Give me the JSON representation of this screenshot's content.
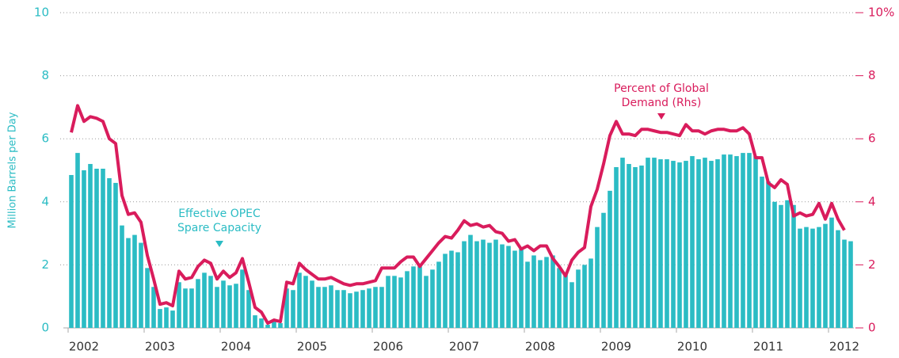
{
  "chart_data": {
    "type": "bar-line",
    "y_label": "Million Barrels per Day",
    "categories": [
      null,
      null,
      "2002",
      null,
      null,
      null,
      null,
      null,
      null,
      null,
      null,
      null,
      null,
      null,
      "2003",
      null,
      null,
      null,
      null,
      null,
      null,
      null,
      null,
      null,
      null,
      null,
      "2004",
      null,
      null,
      null,
      null,
      null,
      null,
      null,
      null,
      null,
      null,
      null,
      "2005",
      null,
      null,
      null,
      null,
      null,
      null,
      null,
      null,
      null,
      null,
      null,
      "2006",
      null,
      null,
      null,
      null,
      null,
      null,
      null,
      null,
      null,
      null,
      null,
      "2007",
      null,
      null,
      null,
      null,
      null,
      null,
      null,
      null,
      null,
      null,
      null,
      "2008",
      null,
      null,
      null,
      null,
      null,
      null,
      null,
      null,
      null,
      null,
      null,
      "2009",
      null,
      null,
      null,
      null,
      null,
      null,
      null,
      null,
      null,
      null,
      null,
      "2010",
      null,
      null,
      null,
      null,
      null,
      null,
      null,
      null,
      null,
      null,
      null,
      "2011",
      null,
      null,
      null,
      null,
      null,
      null,
      null,
      null,
      null,
      null,
      null,
      "2012",
      null
    ],
    "series": [
      {
        "name": "Effective OPEC Spare Capacity",
        "color": "#2bbcc4",
        "kind": "bar",
        "values": [
          4.85,
          5.55,
          5.0,
          5.2,
          5.05,
          5.05,
          4.75,
          4.6,
          3.25,
          2.85,
          2.95,
          2.7,
          1.9,
          1.3,
          0.6,
          0.65,
          0.55,
          1.45,
          1.25,
          1.25,
          1.55,
          1.75,
          1.65,
          1.3,
          1.5,
          1.35,
          1.4,
          1.85,
          1.2,
          0.4,
          0.3,
          0.1,
          0.2,
          0.15,
          1.25,
          1.2,
          1.75,
          1.65,
          1.5,
          1.3,
          1.3,
          1.35,
          1.2,
          1.2,
          1.1,
          1.15,
          1.2,
          1.25,
          1.3,
          1.3,
          1.65,
          1.65,
          1.6,
          1.8,
          1.95,
          1.95,
          1.65,
          1.85,
          2.1,
          2.35,
          2.45,
          2.4,
          2.75,
          2.95,
          2.75,
          2.8,
          2.7,
          2.8,
          2.65,
          2.6,
          2.45,
          2.5,
          2.1,
          2.3,
          2.15,
          2.25,
          2.3,
          1.9,
          1.7,
          1.45,
          1.85,
          2.0,
          2.2,
          3.2,
          3.65,
          4.35,
          5.1,
          5.4,
          5.2,
          5.1,
          5.15,
          5.4,
          5.4,
          5.35,
          5.35,
          5.3,
          5.25,
          5.3,
          5.45,
          5.35,
          5.4,
          5.3,
          5.35,
          5.5,
          5.5,
          5.45,
          5.55,
          5.55,
          5.45,
          4.8,
          4.65,
          4.0,
          3.9,
          4.05,
          3.9,
          3.15,
          3.2,
          3.15,
          3.2,
          3.3,
          3.5,
          3.1,
          2.8,
          2.75
        ]
      },
      {
        "name": "Percent of Global Demand (Rhs)",
        "color": "#d91c5c",
        "kind": "line",
        "axis": "y2",
        "values": [
          6.2,
          7.05,
          6.55,
          6.7,
          6.65,
          6.55,
          6.0,
          5.85,
          4.2,
          3.6,
          3.65,
          3.35,
          2.3,
          1.55,
          0.75,
          0.8,
          0.7,
          1.8,
          1.55,
          1.6,
          1.95,
          2.15,
          2.05,
          1.55,
          1.8,
          1.6,
          1.75,
          2.2,
          1.45,
          0.65,
          0.5,
          0.15,
          0.25,
          0.2,
          1.45,
          1.4,
          2.05,
          1.85,
          1.7,
          1.55,
          1.55,
          1.6,
          1.5,
          1.4,
          1.35,
          1.4,
          1.4,
          1.45,
          1.5,
          1.9,
          1.9,
          1.9,
          2.1,
          2.25,
          2.25,
          1.95,
          2.2,
          2.45,
          2.7,
          2.9,
          2.85,
          3.1,
          3.4,
          3.25,
          3.3,
          3.2,
          3.25,
          3.05,
          3.0,
          2.75,
          2.8,
          2.5,
          2.6,
          2.45,
          2.6,
          2.6,
          2.2,
          1.95,
          1.65,
          2.15,
          2.4,
          2.55,
          3.85,
          4.4,
          5.2,
          6.1,
          6.55,
          6.15,
          6.15,
          6.1,
          6.3,
          6.3,
          6.25,
          6.2,
          6.2,
          6.15,
          6.1,
          6.45,
          6.25,
          6.25,
          6.15,
          6.25,
          6.3,
          6.3,
          6.25,
          6.25,
          6.35,
          6.15,
          5.4,
          5.4,
          4.6,
          4.45,
          4.7,
          4.55,
          3.55,
          3.65,
          3.55,
          3.6,
          3.95,
          3.45,
          3.95,
          3.45,
          3.1,
          null
        ]
      }
    ],
    "annotations": [
      {
        "lines": [
          "Effective OPEC",
          "Spare Capacity"
        ],
        "series": 0
      },
      {
        "lines": [
          "Percent of Global",
          "Demand (Rhs)"
        ],
        "series": 1
      }
    ],
    "ylim": [
      0,
      10
    ],
    "yticks": [
      0,
      2,
      4,
      6,
      8,
      10
    ],
    "y2lim": [
      0,
      10
    ],
    "y2ticks": [
      0,
      2,
      4,
      6,
      8,
      {
        "value": 10,
        "label": "10%"
      }
    ],
    "grid": true
  }
}
